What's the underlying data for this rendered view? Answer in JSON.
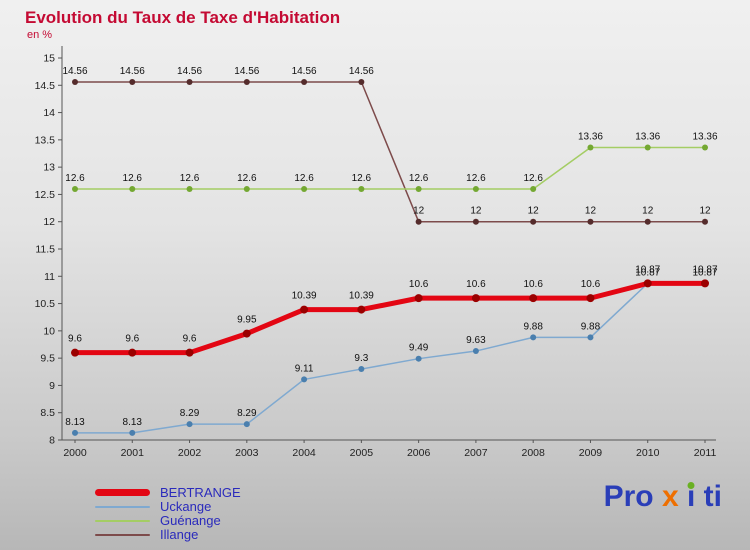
{
  "title": "Evolution du Taux de Taxe d'Habitation",
  "subtitle": "en %",
  "chart_data": {
    "type": "line",
    "x": [
      "2000",
      "2001",
      "2002",
      "2003",
      "2004",
      "2005",
      "2006",
      "2007",
      "2008",
      "2009",
      "2010",
      "2011"
    ],
    "ylim": [
      8,
      15
    ],
    "ytick_step": 0.5,
    "grid": false,
    "legend_position": "bottom-left",
    "series": [
      {
        "name": "BERTRANGE",
        "color": "#e30613",
        "marker_color": "#9b0000",
        "line_width": 5,
        "values": [
          9.6,
          9.6,
          9.6,
          9.95,
          10.39,
          10.39,
          10.6,
          10.6,
          10.6,
          10.6,
          10.87,
          10.87
        ]
      },
      {
        "name": "Uckange",
        "color": "#7fa9d0",
        "marker_color": "#4a7fae",
        "line_width": 1.5,
        "values": [
          8.13,
          8.13,
          8.29,
          8.29,
          9.11,
          9.3,
          9.49,
          9.63,
          9.88,
          9.88,
          10.87,
          10.87
        ]
      },
      {
        "name": "Guénange",
        "color": "#a4cd64",
        "marker_color": "#74a832",
        "line_width": 1.5,
        "values": [
          12.6,
          12.6,
          12.6,
          12.6,
          12.6,
          12.6,
          12.6,
          12.6,
          12.6,
          13.36,
          13.36,
          13.36
        ]
      },
      {
        "name": "Illange",
        "color": "#7d4b4b",
        "marker_color": "#552c2c",
        "line_width": 1.5,
        "values": [
          14.56,
          14.56,
          14.56,
          14.56,
          14.56,
          14.56,
          12,
          12,
          12,
          12,
          12,
          12
        ]
      }
    ]
  },
  "axis": {
    "line_color": "#555555",
    "label_color": "#222222",
    "point_label_color": "#111111"
  },
  "legend": {
    "text_color": "#2a2abc",
    "items": [
      {
        "label": "BERTRANGE",
        "color": "#e30613",
        "thick": true
      },
      {
        "label": "Uckange",
        "color": "#7fa9d0",
        "thick": false
      },
      {
        "label": "Guénange",
        "color": "#a4cd64",
        "thick": false
      },
      {
        "label": "Illange",
        "color": "#7d4b4b",
        "thick": false
      }
    ]
  },
  "logo": {
    "part1": "Pro",
    "part2": "x",
    "part3": "i",
    "part4": "ti",
    "blue": "#2a3eb8",
    "orange": "#ee6f00",
    "green": "#6ab023"
  }
}
